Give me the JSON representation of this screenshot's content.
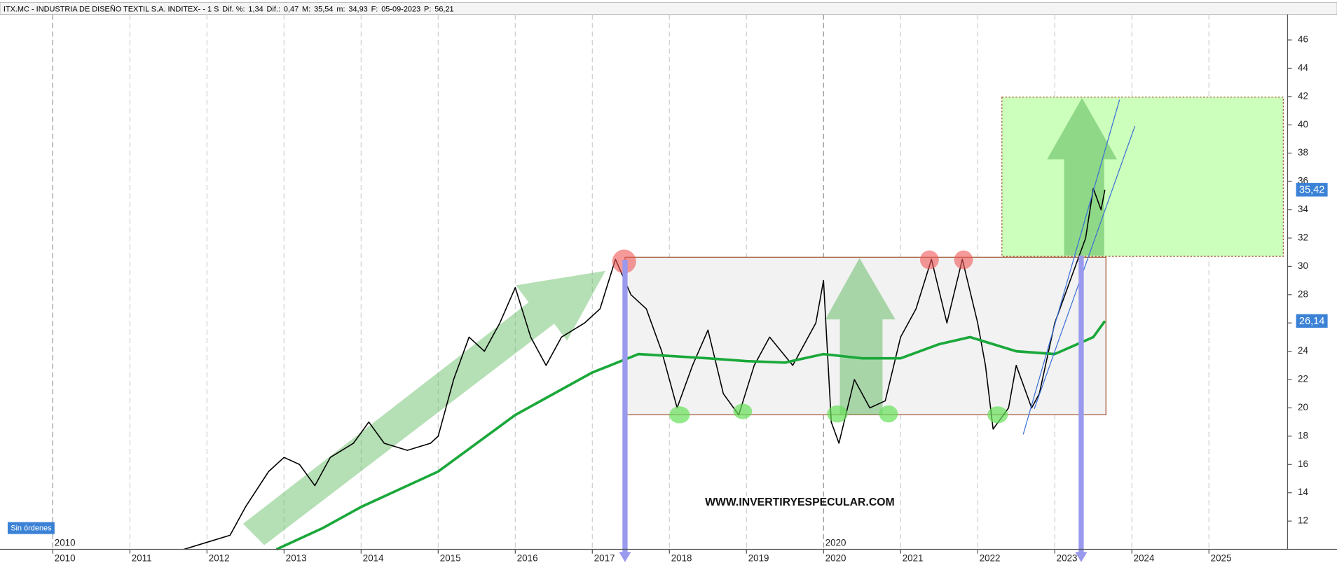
{
  "header": {
    "symbol": "ITX.MC - INDUSTRIA DE DISEÑO TEXTIL S.A. INDITEX- - 1 S",
    "fields": [
      {
        "label": "Dif. %:",
        "value": "1,34",
        "color": "#3a7bd5"
      },
      {
        "label": "Dif.:",
        "value": "0,47",
        "color": "#3a7bd5"
      },
      {
        "label": "M:",
        "value": "35,54",
        "color": "#000000"
      },
      {
        "label": "m:",
        "value": "34,93",
        "color": "#000000"
      },
      {
        "label": "F:",
        "value": "05-09-2023",
        "color": "#000000"
      },
      {
        "label": "P:",
        "value": "56,21",
        "color": "#e00000"
      }
    ]
  },
  "chart_data": {
    "type": "line",
    "watermark": "WWW.INVERTIRYESPECULAR.COM",
    "status": "Sin órdenes",
    "xlim": [
      2009.37,
      2026.02
    ],
    "ylim": [
      10,
      47.8
    ],
    "xticks": [
      2010,
      2011,
      2012,
      2013,
      2014,
      2015,
      2016,
      2017,
      2018,
      2019,
      2020,
      2021,
      2022,
      2023,
      2024,
      2025
    ],
    "yticks": [
      12,
      14,
      16,
      18,
      20,
      22,
      24,
      26,
      28,
      30,
      32,
      34,
      36,
      38,
      40,
      42,
      44,
      46
    ],
    "era_labels": [
      2010,
      2020
    ],
    "grid": "x",
    "series": [
      {
        "name": "price",
        "color": "#000000",
        "x": [
          2011.7,
          2012.0,
          2012.3,
          2012.5,
          2012.8,
          2013.0,
          2013.2,
          2013.4,
          2013.6,
          2013.9,
          2014.1,
          2014.3,
          2014.6,
          2014.9,
          2015.0,
          2015.2,
          2015.4,
          2015.6,
          2015.8,
          2016.0,
          2016.2,
          2016.4,
          2016.6,
          2016.9,
          2017.1,
          2017.3,
          2017.5,
          2017.7,
          2017.9,
          2018.1,
          2018.3,
          2018.5,
          2018.7,
          2018.9,
          2019.1,
          2019.3,
          2019.6,
          2019.9,
          2020.0,
          2020.1,
          2020.2,
          2020.4,
          2020.6,
          2020.8,
          2021.0,
          2021.2,
          2021.4,
          2021.6,
          2021.8,
          2022.0,
          2022.1,
          2022.2,
          2022.4,
          2022.5,
          2022.7,
          2022.8,
          2023.0,
          2023.2,
          2023.4,
          2023.5,
          2023.6,
          2023.65
        ],
        "values": [
          10,
          10.5,
          11,
          13,
          15.5,
          16.5,
          16,
          14.5,
          16.5,
          17.5,
          19,
          17.5,
          17,
          17.5,
          18,
          22,
          25,
          24,
          26,
          28.5,
          25,
          23,
          25,
          26,
          27,
          30.5,
          28,
          27,
          24,
          20,
          23,
          25.5,
          21,
          19.5,
          23,
          25,
          23,
          26,
          29,
          19,
          17.5,
          22,
          20,
          20.5,
          25,
          27,
          30.5,
          26,
          30.5,
          26,
          23,
          18.5,
          20,
          23,
          20,
          21,
          26,
          29,
          32,
          35.5,
          34,
          35.42
        ]
      },
      {
        "name": "moving average",
        "color": "#1aa83a",
        "x": [
          2012.9,
          2013.5,
          2014.0,
          2015.0,
          2016.0,
          2017.0,
          2017.6,
          2018.5,
          2019.0,
          2019.5,
          2020.0,
          2020.5,
          2021.0,
          2021.5,
          2021.9,
          2022.5,
          2023.0,
          2023.5,
          2023.65
        ],
        "values": [
          10,
          11.5,
          13,
          15.5,
          19.5,
          22.5,
          23.8,
          23.5,
          23.3,
          23.2,
          23.8,
          23.5,
          23.5,
          24.5,
          25,
          24,
          23.8,
          25,
          26.14
        ]
      }
    ],
    "price_tags": [
      {
        "value": 35.42,
        "label": "35,42",
        "color": "#3b82d6"
      },
      {
        "value": 26.14,
        "label": "26,14",
        "color": "#3b82d6"
      }
    ]
  }
}
